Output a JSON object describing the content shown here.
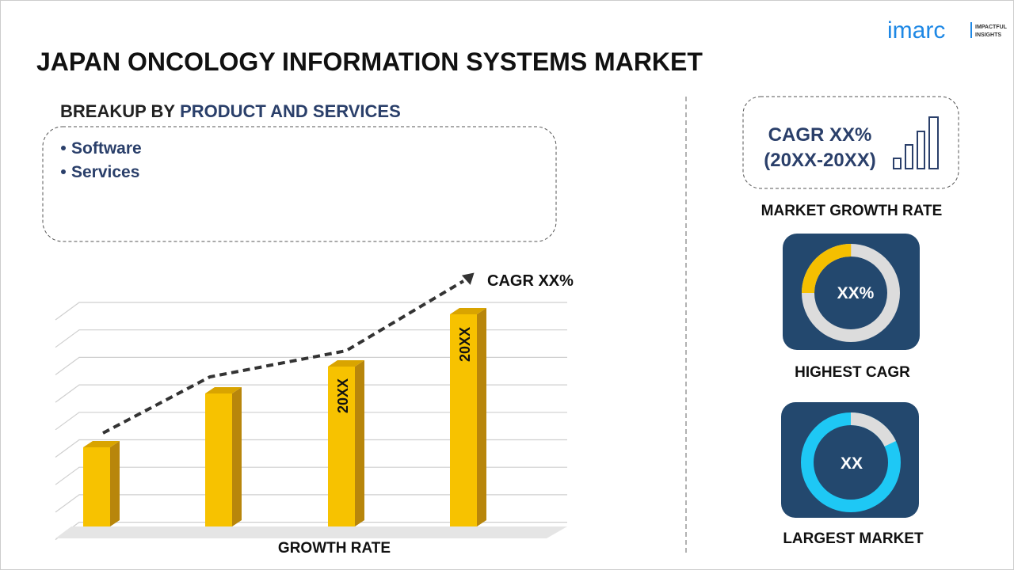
{
  "header": {
    "title": "JAPAN ONCOLOGY INFORMATION SYSTEMS MARKET"
  },
  "logo": {
    "name": "imarc",
    "tagline": [
      "IMPACTFUL",
      "INSIGHTS"
    ]
  },
  "breakup": {
    "prefix": "BREAKUP BY",
    "segment": "PRODUCT AND SERVICES",
    "items": [
      "Software",
      "Services"
    ]
  },
  "growth_chart": {
    "trend_label": "CAGR XX%",
    "bar_labels": [
      "20XX",
      "20XX"
    ],
    "caption": "GROWTH RATE"
  },
  "cards": {
    "market_growth": {
      "value": "CAGR XX%",
      "period": "(20XX-20XX)",
      "caption": "MARKET GROWTH RATE"
    },
    "highest_cagr": {
      "value": "XX%",
      "caption": "HIGHEST CAGR"
    },
    "largest_market": {
      "value": "XX",
      "caption": "LARGEST MARKET"
    }
  }
}
